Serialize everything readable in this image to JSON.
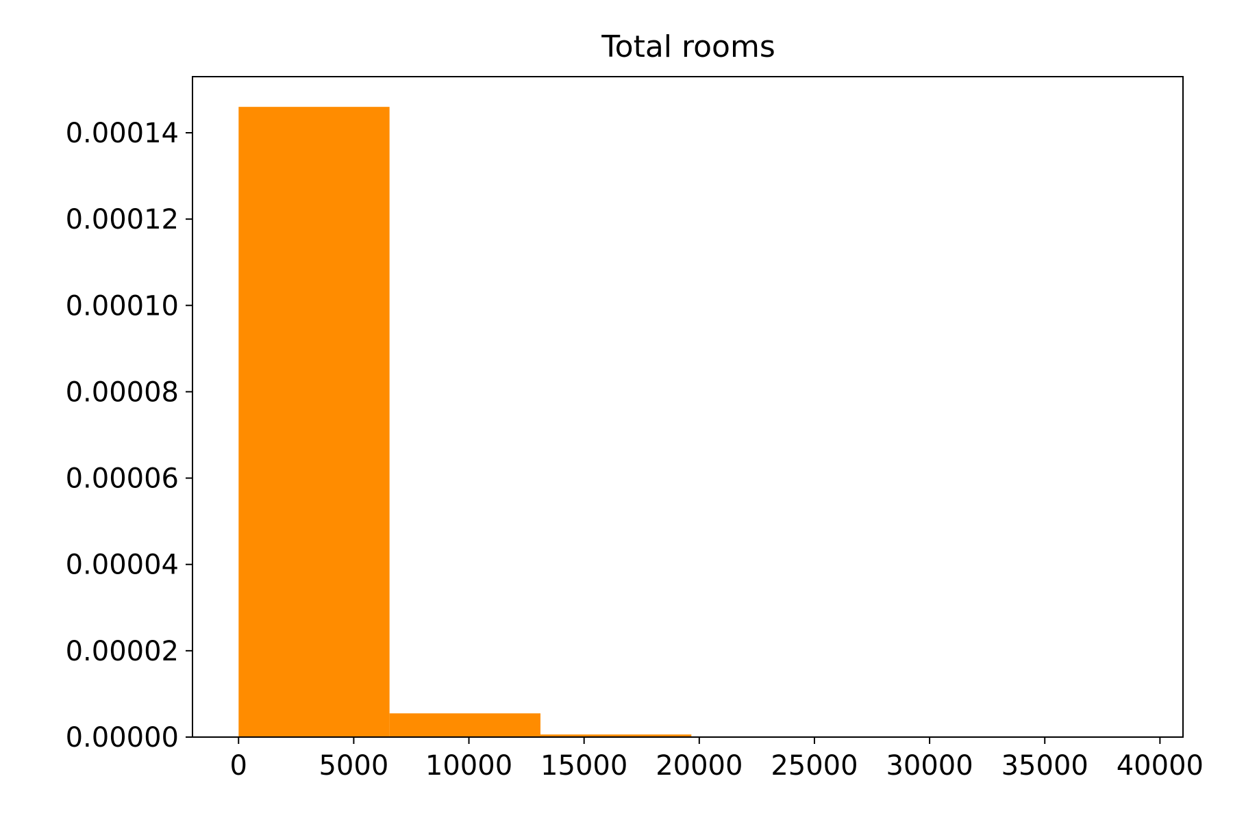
{
  "chart_data": {
    "type": "bar",
    "title": "Total rooms",
    "xlabel": "",
    "ylabel": "",
    "xlim": [
      -2000,
      41000
    ],
    "ylim": [
      0,
      0.000153
    ],
    "x_ticks": [
      0,
      5000,
      10000,
      15000,
      20000,
      25000,
      30000,
      35000,
      40000
    ],
    "x_tick_labels": [
      "0",
      "5000",
      "10000",
      "15000",
      "20000",
      "25000",
      "30000",
      "35000",
      "40000"
    ],
    "y_ticks": [
      0,
      2e-05,
      4e-05,
      6e-05,
      8e-05,
      0.0001,
      0.00012,
      0.00014
    ],
    "y_tick_labels": [
      "0.00000",
      "0.00002",
      "0.00004",
      "0.00006",
      "0.00008",
      "0.00010",
      "0.00012",
      "0.00014"
    ],
    "bin_edges": [
      2,
      6554,
      13106,
      19658,
      26210,
      32762,
      39314
    ],
    "values": [
      0.000146,
      5.5e-06,
      6e-07,
      8e-08,
      3e-08,
      2e-08
    ],
    "bar_color": "#ff8c00",
    "grid": false,
    "legend": "none"
  }
}
